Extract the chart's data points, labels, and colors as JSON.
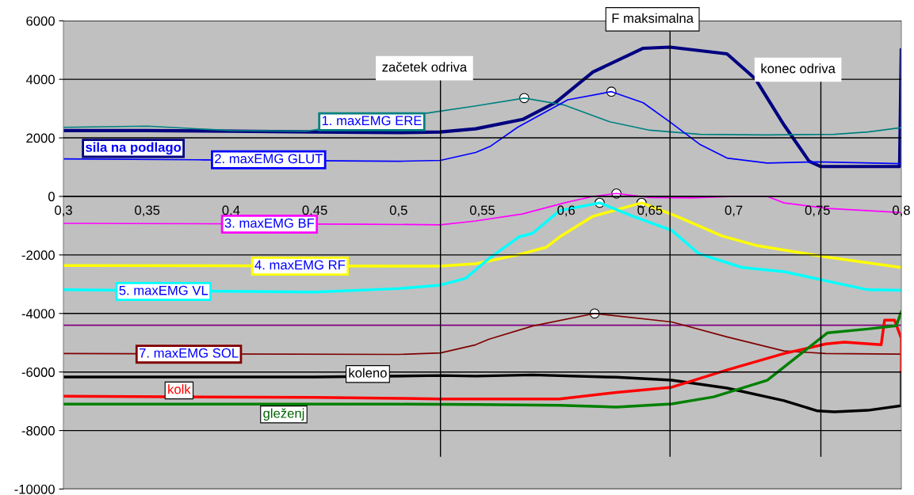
{
  "chart_data": {
    "type": "line",
    "xlim": [
      0.3,
      0.8
    ],
    "ylim": [
      -10000,
      6000
    ],
    "xticks": [
      {
        "value": 0.3,
        "label": "0,3"
      },
      {
        "value": 0.35,
        "label": "0,35"
      },
      {
        "value": 0.4,
        "label": "0,4"
      },
      {
        "value": 0.45,
        "label": "0,45"
      },
      {
        "value": 0.5,
        "label": "0,5"
      },
      {
        "value": 0.55,
        "label": "0,55"
      },
      {
        "value": 0.6,
        "label": "0,6"
      },
      {
        "value": 0.65,
        "label": "0,65"
      },
      {
        "value": 0.7,
        "label": "0,7"
      },
      {
        "value": 0.75,
        "label": "0,75"
      },
      {
        "value": 0.8,
        "label": "0,8"
      }
    ],
    "yticks": [
      -10000,
      -8000,
      -6000,
      -4000,
      -2000,
      0,
      2000,
      4000,
      6000
    ],
    "grid": "y",
    "legend": false,
    "marker": "none",
    "line_style": "solid",
    "series": [
      {
        "name": "sila na podlago",
        "color": "#000080",
        "x": [
          0.3,
          0.35,
          0.4,
          0.45,
          0.5,
          0.525,
          0.546,
          0.574,
          0.594,
          0.616,
          0.646,
          0.662,
          0.696,
          0.713,
          0.73,
          0.745,
          0.752,
          0.775,
          0.799,
          0.8
        ],
        "values": [
          2250,
          2250,
          2230,
          2200,
          2180,
          2200,
          2310,
          2630,
          3220,
          4250,
          5060,
          5100,
          4870,
          4010,
          2440,
          1200,
          1020,
          1020,
          1020,
          5000
        ]
      },
      {
        "name": "1. maxEMG ERE",
        "color": "#008080",
        "x": [
          0.3,
          0.35,
          0.4,
          0.445,
          0.52,
          0.546,
          0.575,
          0.599,
          0.626,
          0.65,
          0.68,
          0.72,
          0.76,
          0.78,
          0.8
        ],
        "values": [
          2360,
          2400,
          2250,
          2230,
          2870,
          3090,
          3360,
          3120,
          2550,
          2260,
          2120,
          2100,
          2120,
          2200,
          2350
        ]
      },
      {
        "name": "2. maxEMG GLUT",
        "color": "#0000ff",
        "x": [
          0.3,
          0.38,
          0.5,
          0.525,
          0.546,
          0.555,
          0.571,
          0.601,
          0.627,
          0.646,
          0.663,
          0.68,
          0.696,
          0.72,
          0.75,
          0.8
        ],
        "values": [
          1280,
          1250,
          1200,
          1230,
          1500,
          1720,
          2360,
          3300,
          3580,
          3200,
          2500,
          1770,
          1310,
          1140,
          1180,
          1120
        ]
      },
      {
        "name": "3. maxEMG BF",
        "color": "#ff00ff",
        "x": [
          0.3,
          0.48,
          0.525,
          0.546,
          0.574,
          0.599,
          0.616,
          0.63,
          0.65,
          0.675,
          0.7,
          0.72,
          0.73,
          0.756,
          0.8
        ],
        "values": [
          -920,
          -950,
          -970,
          -840,
          -600,
          -220,
          0,
          100,
          -40,
          -50,
          0,
          0,
          -220,
          -410,
          -550
        ]
      },
      {
        "name": "4. maxEMG RF",
        "color": "#ffff00",
        "x": [
          0.3,
          0.49,
          0.525,
          0.546,
          0.571,
          0.588,
          0.596,
          0.616,
          0.645,
          0.666,
          0.693,
          0.713,
          0.753,
          0.8
        ],
        "values": [
          -2360,
          -2380,
          -2380,
          -2300,
          -2000,
          -1740,
          -1390,
          -680,
          -220,
          -680,
          -1350,
          -1670,
          -2050,
          -2430
        ]
      },
      {
        "name": "5. maxEMG VL",
        "color": "#00ffff",
        "x": [
          0.3,
          0.45,
          0.5,
          0.525,
          0.54,
          0.546,
          0.554,
          0.572,
          0.58,
          0.596,
          0.62,
          0.64,
          0.663,
          0.679,
          0.705,
          0.73,
          0.753,
          0.78,
          0.8
        ],
        "values": [
          -3190,
          -3270,
          -3150,
          -3030,
          -2800,
          -2510,
          -2120,
          -1380,
          -1260,
          -490,
          -220,
          -680,
          -1160,
          -1950,
          -2430,
          -2570,
          -2860,
          -3190,
          -3210
        ]
      },
      {
        "color": "#800080",
        "x": [
          0.3,
          0.8
        ],
        "values": [
          -4400,
          -4400
        ]
      },
      {
        "name": "7. maxEMG SOL",
        "color": "#800000",
        "x": [
          0.3,
          0.5,
          0.525,
          0.546,
          0.554,
          0.58,
          0.617,
          0.663,
          0.696,
          0.73,
          0.755,
          0.8
        ],
        "values": [
          -5370,
          -5400,
          -5350,
          -5070,
          -4880,
          -4430,
          -4000,
          -4290,
          -4800,
          -5280,
          -5370,
          -5390
        ]
      },
      {
        "name": "koleno",
        "color": "#000000",
        "x": [
          0.3,
          0.45,
          0.525,
          0.546,
          0.58,
          0.63,
          0.663,
          0.696,
          0.73,
          0.75,
          0.76,
          0.78,
          0.8,
          0.8
        ],
        "values": [
          -6170,
          -6170,
          -6120,
          -6140,
          -6100,
          -6180,
          -6280,
          -6550,
          -6980,
          -7330,
          -7360,
          -7310,
          -7150,
          -5990
        ]
      },
      {
        "name": "kolk",
        "color": "#ff0000",
        "x": [
          0.3,
          0.45,
          0.5,
          0.525,
          0.546,
          0.596,
          0.63,
          0.663,
          0.696,
          0.73,
          0.755,
          0.766,
          0.788,
          0.79,
          0.796,
          0.8,
          0.8
        ],
        "values": [
          -6830,
          -6870,
          -6900,
          -6920,
          -6920,
          -6920,
          -6700,
          -6520,
          -5930,
          -5370,
          -5040,
          -4980,
          -5070,
          -4230,
          -4230,
          -4850,
          -5990
        ]
      },
      {
        "name": "gleženj",
        "color": "#008000",
        "x": [
          0.3,
          0.45,
          0.5,
          0.546,
          0.596,
          0.63,
          0.663,
          0.688,
          0.72,
          0.738,
          0.756,
          0.78,
          0.797,
          0.8
        ],
        "values": [
          -7100,
          -7100,
          -7100,
          -7110,
          -7140,
          -7200,
          -7090,
          -6850,
          -6280,
          -5470,
          -4660,
          -4530,
          -4420,
          -3940
        ]
      },
      {
        "type": "scatter",
        "marker": "circle",
        "color": "#ffffff",
        "x": [
          0.575,
          0.627,
          0.63,
          0.645,
          0.62,
          0.617
        ],
        "values": [
          3360,
          3580,
          100,
          -220,
          -220,
          -4000
        ]
      }
    ],
    "ref_lines": [
      {
        "axis": "x",
        "value": 0.525,
        "label": "začetek odriva",
        "color": "#000000"
      },
      {
        "axis": "x",
        "value": 0.662,
        "label": "F maksimalna",
        "color": "#000000"
      },
      {
        "axis": "x",
        "value": 0.752,
        "label": "konec odriva",
        "color": "#000000"
      }
    ]
  }
}
